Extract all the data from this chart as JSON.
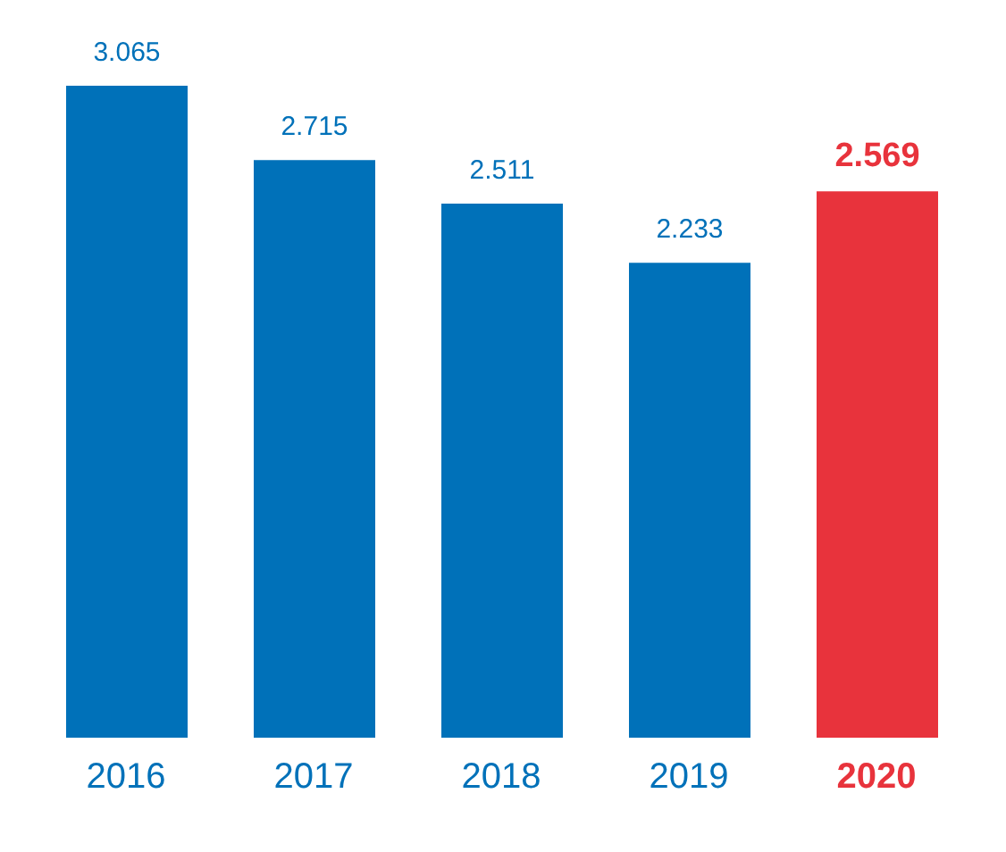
{
  "chart_data": {
    "type": "bar",
    "categories": [
      "2016",
      "2017",
      "2018",
      "2019",
      "2020"
    ],
    "values": [
      3.065,
      2.715,
      2.511,
      2.233,
      2.569
    ],
    "colors": [
      "#0071b9",
      "#0071b9",
      "#0071b9",
      "#0071b9",
      "#e8333c"
    ],
    "data_labels": true,
    "grid": false,
    "legend": false
  }
}
